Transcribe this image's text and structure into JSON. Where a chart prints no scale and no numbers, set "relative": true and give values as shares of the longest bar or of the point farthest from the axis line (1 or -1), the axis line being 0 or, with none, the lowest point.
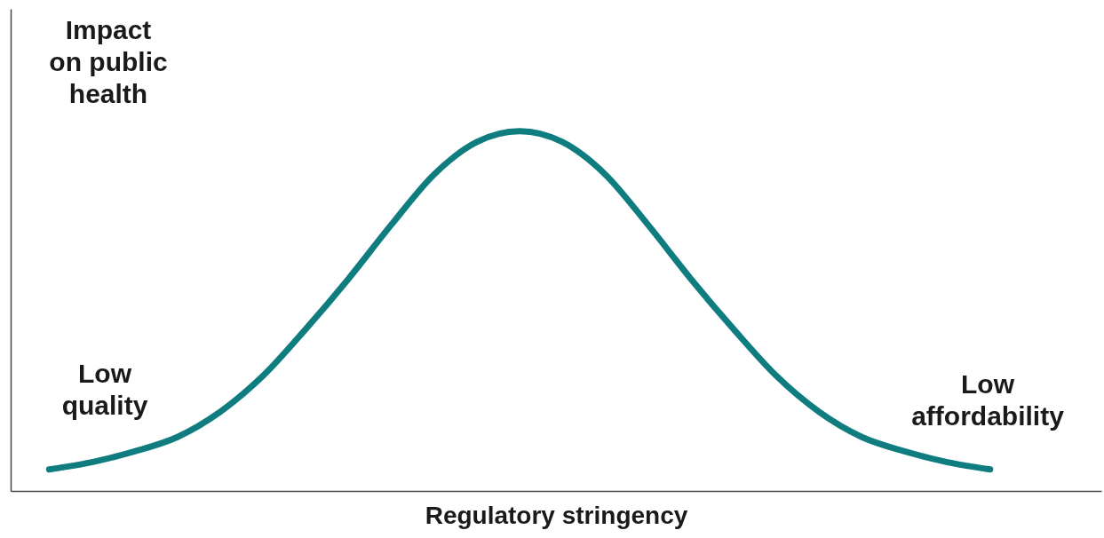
{
  "chart_data": {
    "type": "line",
    "relative": true,
    "ylabel": "Impact\non public\nhealth",
    "xlabel": "Regulatory  stringency",
    "tick_labels": false,
    "grid": false,
    "marker": "none",
    "line_style": "solid",
    "categories": [
      null,
      null,
      null,
      null,
      null,
      null,
      null,
      null,
      null,
      null,
      null,
      null,
      null,
      null,
      null,
      null,
      null,
      null,
      null,
      null,
      null,
      null,
      null
    ],
    "series": [
      {
        "color": "#0f7d80",
        "values": [
          0.06,
          0.08,
          0.11,
          0.15,
          0.22,
          0.32,
          0.45,
          0.59,
          0.74,
          0.88,
          0.97,
          1.0,
          0.97,
          0.88,
          0.74,
          0.59,
          0.45,
          0.32,
          0.22,
          0.15,
          0.11,
          0.08,
          0.06
        ]
      }
    ],
    "annotations": [
      "Low\nquality",
      "Low\naffordability"
    ]
  }
}
